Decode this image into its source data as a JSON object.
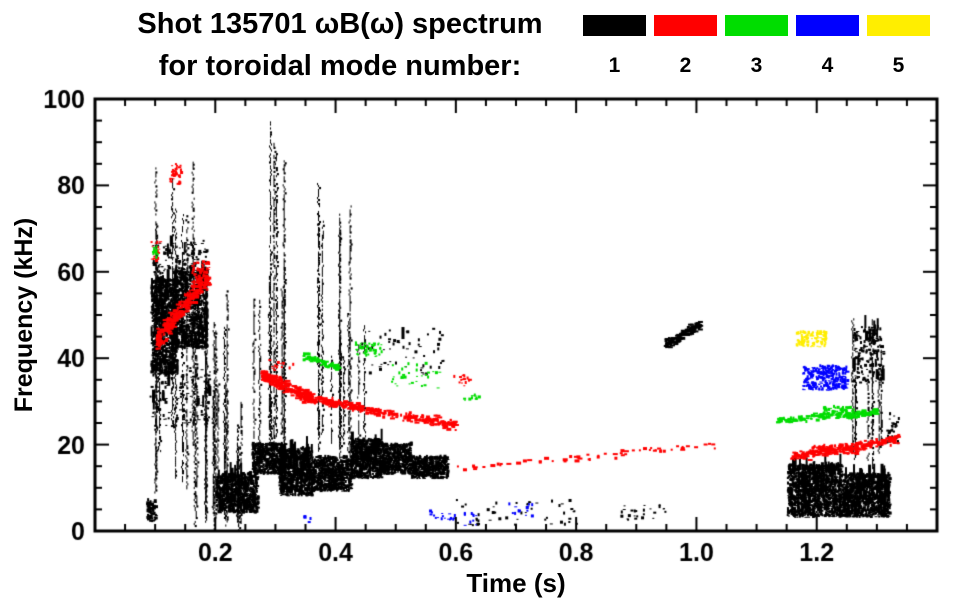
{
  "figure": {
    "background": "#ffffff"
  },
  "chart_data": {
    "type": "scatter",
    "title": "Shot 135701 ωB(ω) spectrum",
    "subtitle": "for toroidal mode number:",
    "xlabel": "Time (s)",
    "ylabel": "Frequency (kHz)",
    "xlim": [
      0.0,
      1.4
    ],
    "ylim": [
      0,
      100
    ],
    "xticks": [
      0.2,
      0.4,
      0.6,
      0.8,
      1.0,
      1.2
    ],
    "xtick_labels": [
      "0.2",
      "0.4",
      "0.6",
      "0.8",
      "1.0",
      "1.2"
    ],
    "yticks": [
      0,
      20,
      40,
      60,
      80,
      100
    ],
    "ytick_labels": [
      "0",
      "20",
      "40",
      "60",
      "80",
      "100"
    ],
    "x_minor_step": 0.05,
    "y_minor_step": 5,
    "grid": false,
    "legend_position": "top-right",
    "frame_color": "#000000",
    "legend": [
      {
        "label": "1",
        "color": "#000000"
      },
      {
        "label": "2",
        "color": "#ff0000"
      },
      {
        "label": "3",
        "color": "#00dd00"
      },
      {
        "label": "4",
        "color": "#0000ff"
      },
      {
        "label": "5",
        "color": "#ffee00"
      }
    ],
    "series": [
      {
        "name": "toroidal mode n=1",
        "mode": 1,
        "color": "#000000",
        "clusters": [
          {
            "k": "blob",
            "t": [
              0.085,
              0.1
            ],
            "f": [
              2,
              7
            ],
            "n": 80
          },
          {
            "k": "blob",
            "t": [
              0.092,
              0.135
            ],
            "f": [
              36,
              58
            ],
            "n": 900
          },
          {
            "k": "blob",
            "t": [
              0.13,
              0.185
            ],
            "f": [
              42,
              60
            ],
            "n": 900
          },
          {
            "k": "blob",
            "t": [
              0.09,
              0.19
            ],
            "f": [
              24,
              38
            ],
            "n": 160
          },
          {
            "k": "blob",
            "t": [
              0.095,
              0.185
            ],
            "f": [
              58,
              67
            ],
            "n": 130
          },
          {
            "k": "streaks",
            "t": [
              0.1,
              0.165
            ],
            "fb": [
              8,
              25
            ],
            "ft": [
              60,
              86
            ],
            "c": 9
          },
          {
            "k": "streaks",
            "t": [
              0.165,
              0.225
            ],
            "fb": [
              0,
              6
            ],
            "ft": [
              30,
              57
            ],
            "c": 12
          },
          {
            "k": "streaks",
            "t": [
              0.225,
              0.255
            ],
            "fb": [
              0,
              4
            ],
            "ft": [
              18,
              30
            ],
            "c": 4
          },
          {
            "k": "blob",
            "t": [
              0.2,
              0.27
            ],
            "f": [
              4,
              13
            ],
            "n": 750
          },
          {
            "k": "blob",
            "t": [
              0.26,
              0.315
            ],
            "f": [
              13,
              20
            ],
            "n": 600
          },
          {
            "k": "blob",
            "t": [
              0.305,
              0.36
            ],
            "f": [
              8,
              19
            ],
            "n": 800
          },
          {
            "k": "blob",
            "t": [
              0.36,
              0.425
            ],
            "f": [
              9,
              17
            ],
            "n": 750
          },
          {
            "k": "blob",
            "t": [
              0.425,
              0.475
            ],
            "f": [
              12,
              21
            ],
            "n": 650
          },
          {
            "k": "blob",
            "t": [
              0.475,
              0.525
            ],
            "f": [
              13,
              20
            ],
            "n": 600
          },
          {
            "k": "blob",
            "t": [
              0.525,
              0.585
            ],
            "f": [
              12,
              17
            ],
            "n": 500
          },
          {
            "k": "streaks",
            "t": [
              0.285,
              0.315
            ],
            "fb": [
              15,
              25
            ],
            "ft": [
              85,
              98
            ],
            "c": 4
          },
          {
            "k": "streaks",
            "t": [
              0.37,
              0.39
            ],
            "fb": [
              16,
              24
            ],
            "ft": [
              70,
              81
            ],
            "c": 3
          },
          {
            "k": "streaks",
            "t": [
              0.405,
              0.425
            ],
            "fb": [
              16,
              22
            ],
            "ft": [
              65,
              79
            ],
            "c": 3
          },
          {
            "k": "streaks",
            "t": [
              0.26,
              0.34
            ],
            "fb": [
              18,
              24
            ],
            "ft": [
              45,
              62
            ],
            "c": 6
          },
          {
            "k": "streaks",
            "t": [
              0.34,
              0.47
            ],
            "fb": [
              18,
              22
            ],
            "ft": [
              35,
              55
            ],
            "c": 6
          },
          {
            "k": "blob",
            "t": [
              0.44,
              0.58
            ],
            "f": [
              36,
              47
            ],
            "n": 60
          },
          {
            "k": "blob",
            "t": [
              0.6,
              0.8
            ],
            "f": [
              1,
              7
            ],
            "n": 50
          },
          {
            "k": "blob",
            "t": [
              0.86,
              0.96
            ],
            "f": [
              2,
              6
            ],
            "n": 25
          },
          {
            "k": "line",
            "t": [
              0.945,
              1.005
            ],
            "f": [
              43,
              48
            ],
            "j": 1.2,
            "n": 110
          },
          {
            "k": "blob",
            "t": [
              1.15,
              1.24
            ],
            "f": [
              3,
              15
            ],
            "n": 1300
          },
          {
            "k": "blob",
            "t": [
              1.24,
              1.32
            ],
            "f": [
              3,
              13
            ],
            "n": 1100
          },
          {
            "k": "streaks",
            "t": [
              1.25,
              1.315
            ],
            "fb": [
              14,
              24
            ],
            "ft": [
              34,
              52
            ],
            "c": 8
          },
          {
            "k": "blob",
            "t": [
              1.26,
              1.31
            ],
            "f": [
              34,
              47
            ],
            "n": 170
          },
          {
            "k": "blob",
            "t": [
              1.315,
              1.335
            ],
            "f": [
              20,
              27
            ],
            "n": 40
          }
        ]
      },
      {
        "name": "toroidal mode n=2",
        "mode": 2,
        "color": "#ff0000",
        "clusters": [
          {
            "k": "line",
            "t": [
              0.1,
              0.185
            ],
            "f": [
              44,
              59
            ],
            "j": 2.2,
            "n": 260
          },
          {
            "k": "blob",
            "t": [
              0.16,
              0.19
            ],
            "f": [
              55,
              62
            ],
            "n": 90
          },
          {
            "k": "blob",
            "t": [
              0.122,
              0.142
            ],
            "f": [
              80,
              85
            ],
            "n": 35
          },
          {
            "k": "blob",
            "t": [
              0.092,
              0.108
            ],
            "f": [
              62,
              67
            ],
            "n": 20
          },
          {
            "k": "line",
            "t": [
              0.275,
              0.36
            ],
            "f": [
              36,
              30.5
            ],
            "j": 1.4,
            "n": 220
          },
          {
            "k": "line",
            "t": [
              0.36,
              0.47
            ],
            "f": [
              30.5,
              27.5
            ],
            "j": 1.1,
            "n": 150
          },
          {
            "k": "line",
            "t": [
              0.47,
              0.6
            ],
            "f": [
              27.5,
              24.5
            ],
            "j": 1.1,
            "n": 130
          },
          {
            "k": "blob",
            "t": [
              0.285,
              0.33
            ],
            "f": [
              37,
              39.5
            ],
            "n": 16
          },
          {
            "k": "blob",
            "t": [
              0.595,
              0.625
            ],
            "f": [
              33.5,
              36
            ],
            "n": 16
          },
          {
            "k": "line",
            "t": [
              0.6,
              1.03
            ],
            "f": [
              14.5,
              20
            ],
            "j": 0.8,
            "n": 60
          },
          {
            "k": "line",
            "t": [
              1.155,
              1.335
            ],
            "f": [
              17,
              21.5
            ],
            "j": 1.0,
            "n": 200
          },
          {
            "k": "blob",
            "t": [
              1.19,
              1.27
            ],
            "f": [
              17.5,
              19.5
            ],
            "n": 160
          }
        ]
      },
      {
        "name": "toroidal mode n=3",
        "mode": 3,
        "color": "#00dd00",
        "clusters": [
          {
            "k": "line",
            "t": [
              0.345,
              0.405
            ],
            "f": [
              40.5,
              37.5
            ],
            "j": 0.8,
            "n": 70
          },
          {
            "k": "blob",
            "t": [
              0.43,
              0.475
            ],
            "f": [
              40,
              43.5
            ],
            "n": 55
          },
          {
            "k": "blob",
            "t": [
              0.49,
              0.58
            ],
            "f": [
              33,
              38.5
            ],
            "n": 35
          },
          {
            "k": "blob",
            "t": [
              0.094,
              0.104
            ],
            "f": [
              63,
              66
            ],
            "n": 12
          },
          {
            "k": "blob",
            "t": [
              0.61,
              0.64
            ],
            "f": [
              29.5,
              31.5
            ],
            "n": 10
          },
          {
            "k": "line",
            "t": [
              1.13,
              1.3
            ],
            "f": [
              25.5,
              27.5
            ],
            "j": 0.7,
            "n": 130
          },
          {
            "k": "blob",
            "t": [
              1.21,
              1.265
            ],
            "f": [
              26,
              28.5
            ],
            "n": 90
          }
        ]
      },
      {
        "name": "toroidal mode n=4",
        "mode": 4,
        "color": "#0000ff",
        "clusters": [
          {
            "k": "blob",
            "t": [
              1.175,
              1.25
            ],
            "f": [
              32.5,
              38
            ],
            "n": 280
          },
          {
            "k": "blob",
            "t": [
              0.55,
              0.6
            ],
            "f": [
              2,
              5
            ],
            "n": 18
          },
          {
            "k": "blob",
            "t": [
              0.68,
              0.73
            ],
            "f": [
              3,
              6
            ],
            "n": 14
          },
          {
            "k": "blob",
            "t": [
              0.61,
              0.645
            ],
            "f": [
              1,
              4
            ],
            "n": 10
          },
          {
            "k": "blob",
            "t": [
              0.345,
              0.36
            ],
            "f": [
              1.5,
              3.5
            ],
            "n": 6
          }
        ]
      },
      {
        "name": "toroidal mode n=5",
        "mode": 5,
        "color": "#ffee00",
        "clusters": [
          {
            "k": "blob",
            "t": [
              1.165,
              1.215
            ],
            "f": [
              42.5,
              46
            ],
            "n": 110
          }
        ]
      }
    ]
  }
}
